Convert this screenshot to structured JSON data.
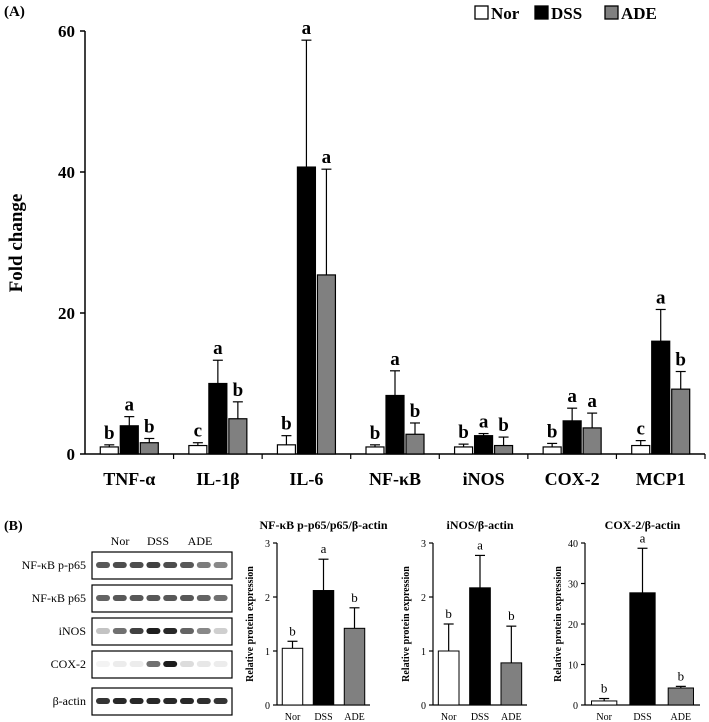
{
  "panel_a_label": "(A)",
  "panel_b_label": "(B)",
  "colors": {
    "Nor": "#ffffff",
    "DSS": "#000000",
    "ADE": "#808080"
  },
  "chart_data": [
    {
      "type": "bar",
      "title": "",
      "xlabel": "",
      "ylabel": "Fold change",
      "ylim": [
        0,
        60
      ],
      "yticks": [
        0,
        20,
        40,
        60
      ],
      "legend": [
        "Nor",
        "DSS",
        "ADE"
      ],
      "categories": [
        "TNF-α",
        "IL-1β",
        "IL-6",
        "NF-κB",
        "iNOS",
        "COX-2",
        "MCP1"
      ],
      "series": [
        {
          "name": "Nor",
          "values": [
            1,
            1.2,
            1.3,
            1,
            1,
            1,
            1.2
          ],
          "errors": [
            0.3,
            0.4,
            1.3,
            0.3,
            0.4,
            0.5,
            0.7
          ],
          "letters": [
            "b",
            "c",
            "b",
            "b",
            "b",
            "b",
            "c"
          ]
        },
        {
          "name": "DSS",
          "values": [
            4,
            10,
            40.7,
            8.3,
            2.6,
            4.7,
            16
          ],
          "errors": [
            1.3,
            3.3,
            18,
            3.5,
            0.3,
            1.8,
            4.5
          ],
          "letters": [
            "a",
            "a",
            "a",
            "a",
            "a",
            "a",
            "a"
          ]
        },
        {
          "name": "ADE",
          "values": [
            1.6,
            5,
            25.4,
            2.8,
            1.2,
            3.7,
            9.2
          ],
          "errors": [
            0.6,
            2.4,
            15,
            1.6,
            1.2,
            2.1,
            2.5
          ],
          "letters": [
            "b",
            "b",
            "a",
            "b",
            "b",
            "a",
            "b"
          ]
        }
      ]
    },
    {
      "type": "bar",
      "title": "NF-κB p-p65/p65/β-actin",
      "ylabel": "Relative protein expression",
      "ylim": [
        0,
        3
      ],
      "yticks": [
        0,
        1,
        2,
        3
      ],
      "categories": [
        "Nor",
        "DSS",
        "ADE"
      ],
      "values": [
        1.05,
        2.12,
        1.42
      ],
      "errors": [
        0.13,
        0.58,
        0.38
      ],
      "letters": [
        "b",
        "a",
        "b"
      ]
    },
    {
      "type": "bar",
      "title": "iNOS/β-actin",
      "ylabel": "Relative protein expression",
      "ylim": [
        0,
        3
      ],
      "yticks": [
        0,
        1,
        2,
        3
      ],
      "categories": [
        "Nor",
        "DSS",
        "ADE"
      ],
      "values": [
        1.0,
        2.17,
        0.78
      ],
      "errors": [
        0.5,
        0.6,
        0.68
      ],
      "letters": [
        "b",
        "a",
        "b"
      ]
    },
    {
      "type": "bar",
      "title": "COX-2/β-actin",
      "ylabel": "Relative protein expression",
      "ylim": [
        0,
        40
      ],
      "yticks": [
        0,
        10,
        20,
        30,
        40
      ],
      "categories": [
        "Nor",
        "DSS",
        "ADE"
      ],
      "values": [
        1,
        27.7,
        4.2
      ],
      "errors": [
        0.6,
        11,
        0.4
      ],
      "letters": [
        "b",
        "a",
        "b"
      ]
    }
  ],
  "blot": {
    "lane_labels": [
      "Nor",
      "DSS",
      "ADE"
    ],
    "rows": [
      "NF-κB p-p65",
      "NF-κB p65",
      "iNOS",
      "COX-2",
      "β-actin"
    ]
  }
}
